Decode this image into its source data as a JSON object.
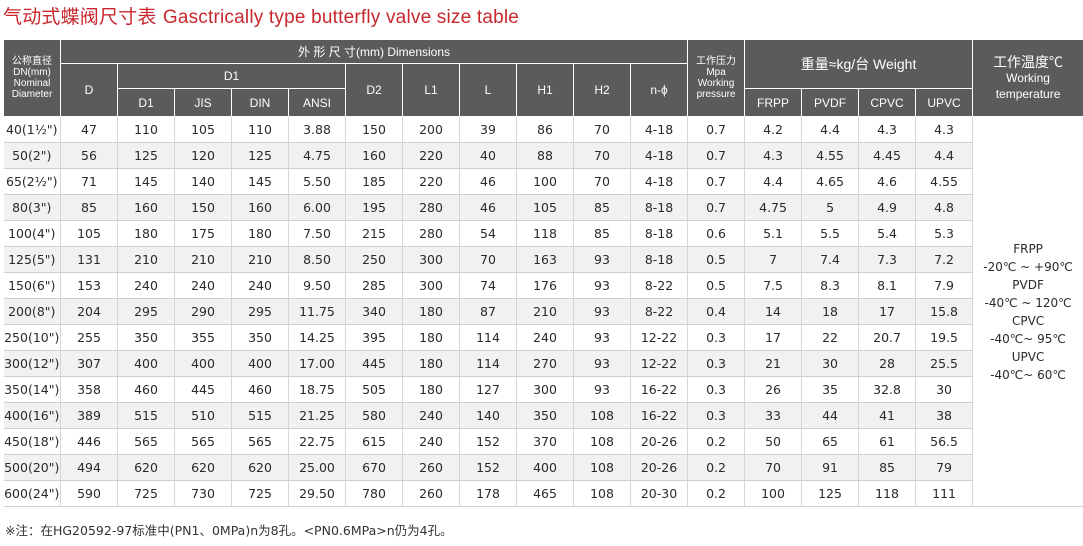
{
  "title": {
    "cn": "气动式蝶阀尺寸表",
    "en": "Gasctrically type butterfly valve size table"
  },
  "header": {
    "dn_cn": "公称直径",
    "dn_en1": "DN(mm)",
    "dn_en2": "Nominal",
    "dn_en3": "Diameter",
    "dims": "外 形 尺 寸(mm) Dimensions",
    "d": "D",
    "d1_group": "D1",
    "d1": "D1",
    "jis": "JIS",
    "din": "DIN",
    "ansi": "ANSI",
    "d2": "D2",
    "l1": "L1",
    "l": "L",
    "h1": "H1",
    "h2": "H2",
    "n_phi": "n-ϕ",
    "pressure_cn": "工作压力",
    "pressure_en1": "Mpa",
    "pressure_en2": "Working",
    "pressure_en3": "pressure",
    "weight": "重量≈kg/台 Weight",
    "frpp": "FRPP",
    "pvdf": "PVDF",
    "cpvc": "CPVC",
    "upvc": "UPVC",
    "temp_cn": "工作温度℃",
    "temp_en1": "Working",
    "temp_en2": "temperature"
  },
  "rows": [
    [
      "40(1½\")",
      "47",
      "110",
      "105",
      "110",
      "3.88",
      "150",
      "200",
      "39",
      "86",
      "70",
      "4-18",
      "0.7",
      "4.2",
      "4.4",
      "4.3",
      "4.3"
    ],
    [
      "50(2\")",
      "56",
      "125",
      "120",
      "125",
      "4.75",
      "160",
      "220",
      "40",
      "88",
      "70",
      "4-18",
      "0.7",
      "4.3",
      "4.55",
      "4.45",
      "4.4"
    ],
    [
      "65(2½\")",
      "71",
      "145",
      "140",
      "145",
      "5.50",
      "185",
      "220",
      "46",
      "100",
      "70",
      "4-18",
      "0.7",
      "4.4",
      "4.65",
      "4.6",
      "4.55"
    ],
    [
      "80(3\")",
      "85",
      "160",
      "150",
      "160",
      "6.00",
      "195",
      "280",
      "46",
      "105",
      "85",
      "8-18",
      "0.7",
      "4.75",
      "5",
      "4.9",
      "4.8"
    ],
    [
      "100(4\")",
      "105",
      "180",
      "175",
      "180",
      "7.50",
      "215",
      "280",
      "54",
      "118",
      "85",
      "8-18",
      "0.6",
      "5.1",
      "5.5",
      "5.4",
      "5.3"
    ],
    [
      "125(5\")",
      "131",
      "210",
      "210",
      "210",
      "8.50",
      "250",
      "300",
      "70",
      "163",
      "93",
      "8-18",
      "0.5",
      "7",
      "7.4",
      "7.3",
      "7.2"
    ],
    [
      "150(6\")",
      "153",
      "240",
      "240",
      "240",
      "9.50",
      "285",
      "300",
      "74",
      "176",
      "93",
      "8-22",
      "0.5",
      "7.5",
      "8.3",
      "8.1",
      "7.9"
    ],
    [
      "200(8\")",
      "204",
      "295",
      "290",
      "295",
      "11.75",
      "340",
      "180",
      "87",
      "210",
      "93",
      "8-22",
      "0.4",
      "14",
      "18",
      "17",
      "15.8"
    ],
    [
      "250(10\")",
      "255",
      "350",
      "355",
      "350",
      "14.25",
      "395",
      "180",
      "114",
      "240",
      "93",
      "12-22",
      "0.3",
      "17",
      "22",
      "20.7",
      "19.5"
    ],
    [
      "300(12\")",
      "307",
      "400",
      "400",
      "400",
      "17.00",
      "445",
      "180",
      "114",
      "270",
      "93",
      "12-22",
      "0.3",
      "21",
      "30",
      "28",
      "25.5"
    ],
    [
      "350(14\")",
      "358",
      "460",
      "445",
      "460",
      "18.75",
      "505",
      "180",
      "127",
      "300",
      "93",
      "16-22",
      "0.3",
      "26",
      "35",
      "32.8",
      "30"
    ],
    [
      "400(16\")",
      "389",
      "515",
      "510",
      "515",
      "21.25",
      "580",
      "240",
      "140",
      "350",
      "108",
      "16-22",
      "0.3",
      "33",
      "44",
      "41",
      "38"
    ],
    [
      "450(18\")",
      "446",
      "565",
      "565",
      "565",
      "22.75",
      "615",
      "240",
      "152",
      "370",
      "108",
      "20-26",
      "0.2",
      "50",
      "65",
      "61",
      "56.5"
    ],
    [
      "500(20\")",
      "494",
      "620",
      "620",
      "620",
      "25.00",
      "670",
      "260",
      "152",
      "400",
      "108",
      "20-26",
      "0.2",
      "70",
      "91",
      "85",
      "79"
    ],
    [
      "600(24\")",
      "590",
      "725",
      "730",
      "725",
      "29.50",
      "780",
      "260",
      "178",
      "465",
      "108",
      "20-30",
      "0.2",
      "100",
      "125",
      "118",
      "111"
    ]
  ],
  "temperature": [
    "FRPP",
    "-20℃ ~ +90℃",
    "PVDF",
    "-40℃ ~ 120℃",
    "CPVC",
    "-40℃~ 95℃",
    "UPVC",
    "-40℃~ 60℃"
  ],
  "note": "※注：在HG20592-97标准中(PN1、0MPa)n为8孔。<PN0.6MPa>n仍为4孔。"
}
